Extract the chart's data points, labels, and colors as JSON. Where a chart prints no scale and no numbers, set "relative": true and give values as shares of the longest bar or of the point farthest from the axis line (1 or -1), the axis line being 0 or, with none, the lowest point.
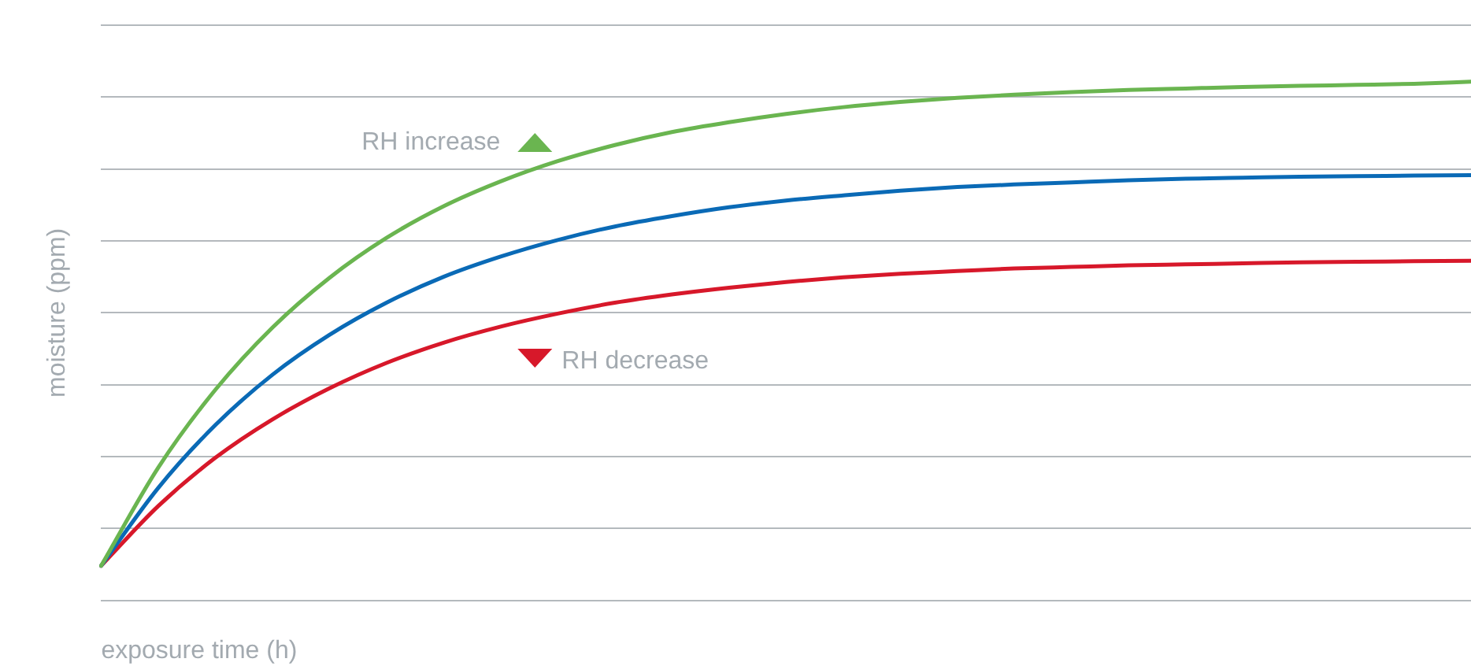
{
  "chart_data": {
    "type": "line",
    "relative": true,
    "xlabel": "exposure time (h)",
    "ylabel": "moisture (ppm)",
    "grid": "y",
    "legend": "top left",
    "marker": "none",
    "line_style": "solid",
    "categories": [
      null,
      null,
      null,
      null,
      null,
      null,
      null,
      null,
      null,
      null,
      null,
      null,
      null,
      null,
      null,
      null,
      null,
      null,
      null,
      null,
      null,
      null,
      null,
      null,
      null
    ],
    "series": [
      {
        "name": "RH increase",
        "color": "#6ab550",
        "values": [
          0.067,
          0.256,
          0.406,
          0.526,
          0.622,
          0.699,
          0.76,
          0.808,
          0.847,
          0.878,
          0.903,
          0.922,
          0.938,
          0.951,
          0.961,
          0.969,
          0.975,
          0.98,
          0.984,
          0.987,
          0.99,
          0.992,
          0.994,
          0.996,
          1
        ]
      },
      {
        "color": "#0a6ab6",
        "values": [
          0.067,
          0.217,
          0.338,
          0.435,
          0.512,
          0.574,
          0.624,
          0.663,
          0.695,
          0.721,
          0.741,
          0.758,
          0.771,
          0.781,
          0.79,
          0.797,
          0.802,
          0.806,
          0.81,
          0.813,
          0.815,
          0.817,
          0.818,
          0.819,
          0.82
        ]
      },
      {
        "name": "RH decrease",
        "color": "#d7182a",
        "values": [
          0.067,
          0.182,
          0.275,
          0.349,
          0.409,
          0.458,
          0.497,
          0.528,
          0.553,
          0.574,
          0.59,
          0.603,
          0.614,
          0.623,
          0.63,
          0.635,
          0.64,
          0.643,
          0.646,
          0.648,
          0.65,
          0.652,
          0.653,
          0.654,
          0.655
        ]
      }
    ]
  }
}
